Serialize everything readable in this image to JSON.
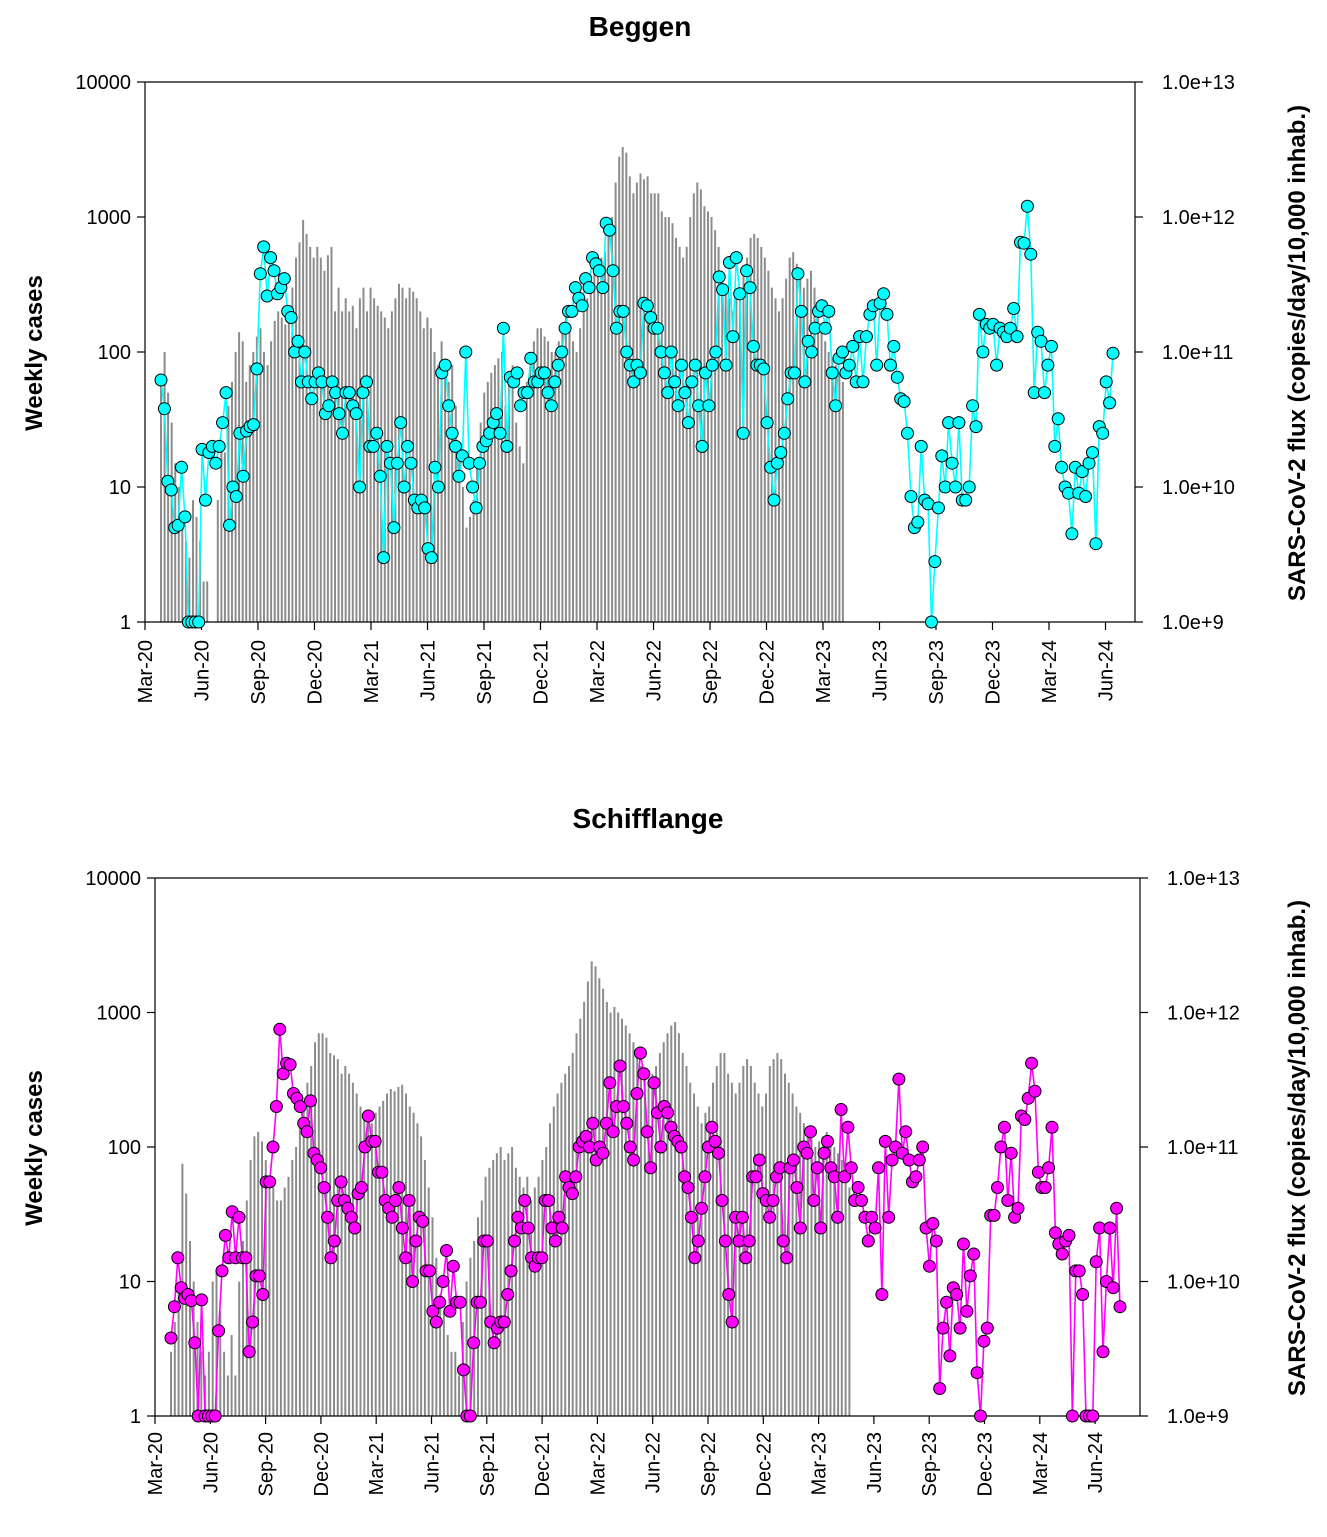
{
  "chart_data": [
    {
      "type": "bar+line",
      "title": "Beggen",
      "ylabel": "Weekly cases",
      "y2label": "SARS-CoV-2 flux (copies/day/10,000 inhab.)",
      "yscale": "log",
      "ylim": [
        1,
        10000
      ],
      "y2lim": [
        1000000000.0,
        10000000000000.0
      ],
      "yticks": [
        "1",
        "10",
        "100",
        "1000",
        "10000"
      ],
      "y2ticks": [
        "1.0e+9",
        "1.0e+10",
        "1.0e+11",
        "1.0e+12",
        "1.0e+13"
      ],
      "xticks": [
        "Mar-20",
        "Jun-20",
        "Sep-20",
        "Dec-20",
        "Mar-21",
        "Jun-21",
        "Sep-21",
        "Dec-21",
        "Mar-22",
        "Jun-22",
        "Sep-22",
        "Dec-22",
        "Mar-23",
        "Jun-23",
        "Sep-23",
        "Dec-23",
        "Mar-24",
        "Jun-24"
      ],
      "grid": false,
      "series": [
        {
          "kind": "bars",
          "color": "#8c8c8c",
          "values": [
            60,
            100,
            50,
            30,
            15,
            10,
            5,
            4,
            3,
            8,
            6,
            4,
            2,
            2,
            1,
            1,
            8,
            20,
            18,
            40,
            60,
            100,
            140,
            120,
            60,
            80,
            100,
            130,
            150,
            100,
            80,
            120,
            170,
            200,
            180,
            160,
            200,
            300,
            500,
            650,
            950,
            750,
            600,
            500,
            600,
            500,
            400,
            520,
            600,
            200,
            300,
            200,
            250,
            200,
            220,
            150,
            250,
            300,
            200,
            300,
            250,
            220,
            200,
            180,
            150,
            200,
            250,
            320,
            300,
            250,
            300,
            280,
            250,
            200,
            150,
            180,
            150,
            100,
            80,
            120,
            80,
            60,
            80,
            40,
            20,
            10,
            5,
            6,
            8,
            15,
            30,
            50,
            60,
            70,
            80,
            90,
            100,
            40,
            60,
            80,
            30,
            20,
            15,
            60,
            100,
            120,
            150,
            150,
            130,
            120,
            100,
            100,
            120,
            150,
            200,
            150,
            120,
            100,
            150,
            200,
            250,
            300,
            400,
            450,
            500,
            550,
            800,
            1000,
            1800,
            2800,
            3300,
            3000,
            2000,
            1500,
            1800,
            2100,
            1900,
            2000,
            1500,
            1500,
            1500,
            1100,
            1000,
            1000,
            900,
            700,
            600,
            500,
            600,
            1000,
            1500,
            1800,
            1600,
            1200,
            1100,
            1000,
            800,
            600,
            400,
            300,
            250,
            200,
            250,
            300,
            400,
            500,
            700,
            750,
            700,
            600,
            500,
            400,
            300,
            250,
            200,
            250,
            350,
            500,
            550,
            450,
            350,
            300,
            350,
            400,
            300,
            200,
            150,
            120,
            100,
            90,
            80,
            70,
            60
          ]
        },
        {
          "kind": "flux",
          "color": "#00ffff",
          "values": [
            62,
            38,
            11,
            9.5,
            5,
            5.2,
            14,
            6,
            1,
            1,
            1,
            1,
            19,
            8,
            18,
            20,
            15,
            20,
            30,
            50,
            5.2,
            10,
            8.5,
            25,
            12,
            26,
            28,
            29,
            75,
            380,
            600,
            260,
            500,
            400,
            270,
            300,
            350,
            200,
            180,
            100,
            120,
            60,
            100,
            60,
            45,
            60,
            70,
            60,
            35,
            40,
            60,
            50,
            35,
            25,
            50,
            50,
            40,
            35,
            10,
            50,
            60,
            20,
            20,
            25,
            12,
            3,
            20,
            15,
            5,
            15,
            30,
            10,
            20,
            15,
            8,
            7,
            8,
            7,
            3.5,
            3,
            14,
            10,
            70,
            80,
            40,
            25,
            20,
            12,
            17,
            100,
            15,
            10,
            7,
            15,
            20,
            22,
            25,
            30,
            35,
            25,
            150,
            20,
            65,
            60,
            70,
            40,
            50,
            50,
            90,
            60,
            60,
            70,
            70,
            50,
            40,
            60,
            80,
            100,
            150,
            200,
            200,
            300,
            250,
            220,
            350,
            300,
            500,
            450,
            400,
            300,
            900,
            800,
            400,
            150,
            200,
            200,
            100,
            80,
            60,
            80,
            70,
            230,
            220,
            180,
            150,
            150,
            100,
            70,
            50,
            100,
            60,
            40,
            80,
            50,
            30,
            60,
            80,
            40,
            20,
            70,
            40,
            80,
            100,
            360,
            290,
            80,
            460,
            130,
            500,
            270,
            25,
            400,
            300,
            110,
            80,
            80,
            75,
            30,
            14,
            8,
            15,
            18,
            25,
            45,
            70,
            70,
            380,
            200,
            60,
            120,
            100,
            150,
            200,
            220,
            150,
            200,
            70,
            40,
            90,
            100,
            70,
            80,
            110,
            60,
            130,
            60,
            130,
            190,
            220,
            80,
            230,
            270,
            190,
            80,
            110,
            65,
            45,
            43,
            25,
            8.5,
            5,
            5.5,
            20,
            8,
            7.5,
            1,
            2.8,
            7,
            17,
            10,
            30,
            15,
            10,
            30,
            8,
            8,
            10,
            40,
            28,
            190,
            100,
            160,
            150,
            160,
            80,
            150,
            140,
            130,
            150,
            210,
            130,
            650,
            640,
            1200,
            530,
            50,
            140,
            120,
            50,
            80,
            110,
            20,
            32,
            14,
            10,
            9,
            4.5,
            14,
            9,
            13,
            8.5,
            15,
            18,
            3.8,
            28,
            25,
            60,
            42,
            98
          ]
        }
      ]
    },
    {
      "type": "bar+line",
      "title": "Schifflange",
      "ylabel": "Weekly cases",
      "y2label": "SARS-CoV-2 flux (copies/day/10,000 inhab.)",
      "yscale": "log",
      "ylim": [
        1,
        10000
      ],
      "y2lim": [
        1000000000.0,
        10000000000000.0
      ],
      "yticks": [
        "1",
        "10",
        "100",
        "1000",
        "10000"
      ],
      "y2ticks": [
        "1.0e+9",
        "1.0e+10",
        "1.0e+11",
        "1.0e+12",
        "1.0e+13"
      ],
      "xticks": [
        "Mar-20",
        "Jun-20",
        "Sep-20",
        "Dec-20",
        "Mar-21",
        "Jun-21",
        "Sep-21",
        "Dec-21",
        "Mar-22",
        "Jun-22",
        "Sep-22",
        "Dec-22",
        "Mar-23",
        "Jun-23",
        "Sep-23",
        "Dec-23",
        "Mar-24",
        "Jun-24"
      ],
      "grid": false,
      "series": [
        {
          "kind": "bars",
          "color": "#8c8c8c",
          "values": [
            3,
            5,
            10,
            75,
            45,
            20,
            10,
            5,
            3,
            2,
            3,
            10,
            12,
            6,
            3,
            2,
            4,
            2,
            10,
            20,
            40,
            80,
            120,
            130,
            110,
            80,
            60,
            50,
            40,
            40,
            50,
            60,
            80,
            100,
            150,
            200,
            300,
            400,
            600,
            700,
            700,
            650,
            500,
            480,
            450,
            350,
            400,
            350,
            300,
            250,
            200,
            180,
            150,
            150,
            180,
            200,
            220,
            250,
            270,
            260,
            280,
            290,
            250,
            200,
            180,
            150,
            120,
            80,
            50,
            30,
            15,
            8,
            6,
            4,
            3,
            3,
            2,
            5,
            10,
            15,
            20,
            30,
            40,
            60,
            70,
            80,
            90,
            100,
            80,
            90,
            100,
            70,
            60,
            50,
            60,
            40,
            50,
            60,
            80,
            100,
            150,
            200,
            250,
            300,
            350,
            400,
            500,
            700,
            900,
            1200,
            1700,
            2400,
            2200,
            1800,
            1500,
            1200,
            1000,
            1100,
            1000,
            900,
            800,
            700,
            600,
            500,
            400,
            350,
            300,
            350,
            400,
            500,
            600,
            700,
            800,
            850,
            700,
            500,
            400,
            300,
            250,
            200,
            150,
            180,
            200,
            300,
            400,
            500,
            500,
            350,
            300,
            250,
            300,
            400,
            450,
            400,
            300,
            250,
            200,
            250,
            400,
            450,
            500,
            450,
            350,
            300,
            250,
            200,
            180,
            150,
            130,
            120,
            100,
            110,
            120,
            130,
            110,
            100,
            90,
            80,
            60,
            50
          ]
        },
        {
          "kind": "flux",
          "color": "#ff00ff",
          "values": [
            3.8,
            6.5,
            15,
            9,
            7.5,
            8,
            7.2,
            3.5,
            1,
            7.3,
            1,
            1,
            1,
            1,
            4.3,
            12,
            22,
            15,
            33,
            15,
            30,
            15,
            15,
            3,
            5,
            11,
            11,
            8,
            55,
            55,
            100,
            200,
            750,
            350,
            420,
            410,
            250,
            230,
            200,
            150,
            130,
            220,
            90,
            80,
            70,
            50,
            30,
            15,
            20,
            40,
            55,
            40,
            35,
            30,
            25,
            45,
            50,
            100,
            170,
            110,
            110,
            65,
            65,
            40,
            35,
            30,
            40,
            50,
            25,
            15,
            40,
            10,
            20,
            30,
            28,
            12,
            12,
            6,
            5,
            7,
            10,
            17,
            6,
            13,
            7,
            7,
            2.2,
            1,
            1,
            3.5,
            7,
            7,
            20,
            20,
            5,
            3.5,
            4.5,
            5,
            5,
            8,
            12,
            20,
            30,
            25,
            40,
            25,
            15,
            13,
            15,
            15,
            40,
            40,
            25,
            20,
            30,
            25,
            60,
            50,
            45,
            60,
            100,
            110,
            120,
            100,
            150,
            80,
            100,
            90,
            150,
            300,
            130,
            200,
            400,
            200,
            150,
            100,
            80,
            250,
            500,
            350,
            130,
            70,
            300,
            180,
            100,
            200,
            180,
            140,
            120,
            110,
            100,
            60,
            50,
            30,
            15,
            20,
            35,
            60,
            100,
            140,
            110,
            90,
            40,
            20,
            8,
            5,
            30,
            20,
            30,
            15,
            20,
            60,
            60,
            80,
            45,
            40,
            30,
            40,
            60,
            70,
            20,
            15,
            70,
            80,
            50,
            25,
            100,
            90,
            130,
            40,
            70,
            25,
            90,
            110,
            70,
            60,
            30,
            190,
            60,
            140,
            70,
            40,
            50,
            40,
            30,
            20,
            30,
            25,
            70,
            8,
            110,
            30,
            80,
            100,
            320,
            90,
            130,
            80,
            55,
            60,
            80,
            100,
            25,
            13,
            27,
            20,
            1.6,
            4.5,
            7,
            2.8,
            9,
            8,
            4.5,
            19,
            6,
            11,
            16,
            2.1,
            1,
            3.6,
            4.5,
            31,
            31,
            50,
            100,
            140,
            40,
            90,
            30,
            35,
            170,
            160,
            230,
            420,
            260,
            65,
            50,
            50,
            70,
            140,
            23,
            19,
            16,
            20,
            22,
            1,
            12,
            12,
            8,
            1,
            1,
            1,
            14,
            25,
            3,
            10,
            25,
            9,
            35,
            6.5
          ]
        }
      ]
    }
  ]
}
